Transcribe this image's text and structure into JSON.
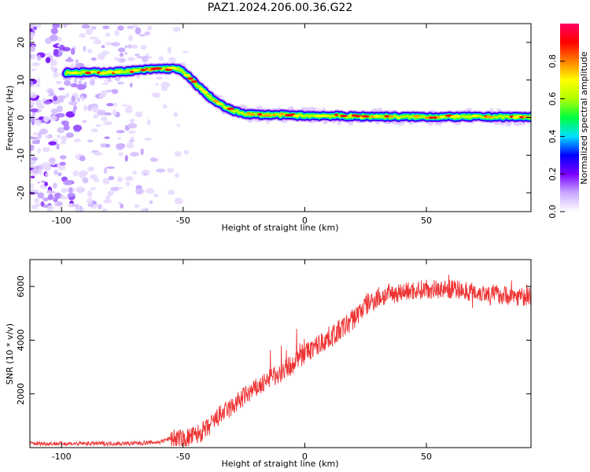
{
  "title": "PAZ1.2024.206.00.36.G22",
  "chart_data": [
    {
      "type": "heatmap",
      "xlabel": "Height of straight line (km)",
      "ylabel": "Frequency (Hz)",
      "xlim": [
        -113,
        93
      ],
      "ylim": [
        -25,
        25
      ],
      "xticks": [
        -100,
        -50,
        0,
        50
      ],
      "yticks": [
        -20,
        -10,
        0,
        10,
        20
      ],
      "colorbar": {
        "label": "Normalized spectral amplitude",
        "range": [
          0.0,
          1.0
        ],
        "ticks": [
          0.0,
          0.2,
          0.4,
          0.6,
          0.8
        ],
        "colormap": [
          "#ffffff",
          "#c8a8ff",
          "#7a00ff",
          "#0000ff",
          "#00e0ff",
          "#00ff40",
          "#b0ff00",
          "#ffff00",
          "#ff8000",
          "#ff0000",
          "#ff0060"
        ]
      },
      "ridge": {
        "x": [
          -98,
          -80,
          -70,
          -60,
          -52,
          -48,
          -44,
          -40,
          -36,
          -32,
          -28,
          -24,
          -20,
          -10,
          0,
          10,
          20,
          30,
          40,
          50,
          60,
          70,
          80,
          93
        ],
        "frequency": [
          12.0,
          12.0,
          12.5,
          13.0,
          13.0,
          11.0,
          8.5,
          6.0,
          4.0,
          2.5,
          1.5,
          1.0,
          0.8,
          0.7,
          0.5,
          0.5,
          0.3,
          0.3,
          0.2,
          0.2,
          0.2,
          0.2,
          0.2,
          0.2
        ]
      },
      "noise_region_x": [
        -113,
        -52
      ]
    },
    {
      "type": "line",
      "xlabel": "Height of straight line (km)",
      "ylabel": "SNR (10 * v/v)",
      "xlim": [
        -113,
        93
      ],
      "ylim": [
        0,
        7000
      ],
      "xticks": [
        -100,
        -50,
        0,
        50
      ],
      "yticks": [
        2000,
        4000,
        6000
      ],
      "series": [
        {
          "color": "#ee3333",
          "x": [
            -113,
            -100,
            -90,
            -80,
            -70,
            -60,
            -55,
            -50,
            -45,
            -40,
            -35,
            -30,
            -25,
            -20,
            -15,
            -10,
            -5,
            0,
            5,
            10,
            15,
            20,
            25,
            30,
            35,
            40,
            45,
            50,
            55,
            60,
            65,
            70,
            75,
            80,
            85,
            93
          ],
          "y": [
            150,
            150,
            150,
            150,
            160,
            200,
            350,
            300,
            450,
            700,
            1200,
            1500,
            1900,
            2200,
            2500,
            2800,
            3100,
            3500,
            3800,
            4100,
            4400,
            4800,
            5300,
            5600,
            5700,
            5800,
            5850,
            5900,
            5900,
            5900,
            5850,
            5800,
            5750,
            5700,
            5650,
            5600
          ]
        }
      ]
    }
  ]
}
